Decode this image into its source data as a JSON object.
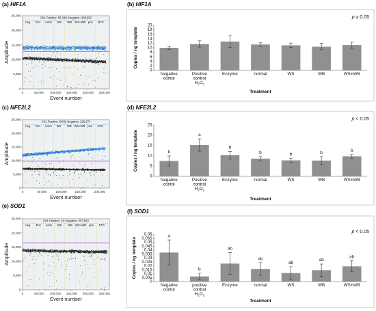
{
  "chart_data": [
    {
      "type": "scatter",
      "panel_label": "(a) HIF1A",
      "header": "Ch1 Positive: 56,348; Negative: 209,652",
      "xlabel": "Event number",
      "ylabel": "Amplitude",
      "x_ticks": [
        "0",
        "50,000",
        "100,000",
        "150,000",
        "200,000",
        "250,000"
      ],
      "y_ticks": [
        "0",
        "5,000",
        "10,000",
        "15,000",
        "20,000",
        "25,000"
      ],
      "xlim": [
        0,
        265000
      ],
      "ylim": [
        0,
        25000
      ],
      "threshold": 12800,
      "groups": [
        "neg",
        "Enz",
        "norm",
        "WS",
        "WB",
        "WS+WB",
        "pos",
        "NTC"
      ],
      "clusters": [
        {
          "name": "positive",
          "color": "#1f78d6",
          "x": [
            0,
            255000
          ],
          "y": [
            14000,
            14000
          ],
          "spread": 1400
        },
        {
          "name": "negative",
          "color": "#222222",
          "x": [
            0,
            255000
          ],
          "y": [
            10500,
            9200
          ],
          "spread": 1000
        }
      ]
    },
    {
      "type": "bar",
      "panel_label": "(b) HIF1A",
      "categories": [
        "Negative\ncontol",
        "Positive\ncontrol\nH2O2",
        "Enzyme",
        "normal",
        "WS",
        "WB",
        "WS+WB"
      ],
      "values": [
        10.0,
        11.7,
        12.8,
        11.5,
        11.1,
        10.5,
        11.2
      ],
      "errors": [
        0.8,
        1.4,
        2.6,
        0.8,
        1.0,
        1.4,
        1.3
      ],
      "letters": [],
      "y_ticks": [
        "0",
        "2",
        "4",
        "6",
        "8",
        "10",
        "12",
        "14",
        "16",
        "18",
        "20"
      ],
      "ylim": [
        0,
        20
      ],
      "ylabel": "Copies / ng template",
      "xlabel": "Treatment",
      "annotation": "p ≥ 0.05",
      "bar_color": "#909090"
    },
    {
      "type": "scatter",
      "panel_label": "(c) NFE2L2",
      "header": "Ch1 Positive: 5409; Negative: 226,274",
      "xlabel": "Event number",
      "ylabel": "Amplitude",
      "x_ticks": [
        "0",
        "50,000",
        "100,000",
        "150,000",
        "200,000"
      ],
      "y_ticks": [
        "0",
        "5,000",
        "10,000",
        "15,000",
        "20,000",
        "25,000"
      ],
      "xlim": [
        0,
        225000
      ],
      "ylim": [
        0,
        25000
      ],
      "threshold": 9800,
      "groups": [
        "neg",
        "Enz",
        "norm",
        "WS",
        "WB",
        "WS+WB",
        "pos",
        "NTC"
      ],
      "clusters": [
        {
          "name": "positive",
          "color": "#1f78d6",
          "x": [
            0,
            215000
          ],
          "y": [
            12000,
            14500
          ],
          "spread": 1000
        },
        {
          "name": "negative",
          "color": "#222222",
          "x": [
            0,
            215000
          ],
          "y": [
            7000,
            6600
          ],
          "spread": 700
        }
      ]
    },
    {
      "type": "bar",
      "panel_label": "(d) NFE2L2",
      "categories": [
        "Negative\ncontol",
        "Positive\ncontrol\nH2O2",
        "Enzyme",
        "normal",
        "WS",
        "WB",
        "WS+WB"
      ],
      "values": [
        7.5,
        15.3,
        10.3,
        8.6,
        7.8,
        7.7,
        9.8
      ],
      "errors": [
        2.5,
        3.0,
        1.9,
        1.1,
        1.1,
        1.9,
        0.9
      ],
      "letters": [
        "b",
        "a",
        "b",
        "b",
        "b",
        "b",
        "b"
      ],
      "y_ticks": [
        "0",
        "5",
        "10",
        "15",
        "20",
        "25"
      ],
      "ylim": [
        0,
        25
      ],
      "ylabel": "Copies / ng template",
      "xlabel": "Treatment",
      "annotation": "p < 0.05",
      "bar_color": "#909090"
    },
    {
      "type": "scatter",
      "panel_label": "(e) SOD1",
      "header": "Ch1 Positive: 14; Negative: 257,862",
      "xlabel": "Event number",
      "ylabel": "Amplitude",
      "x_ticks": [
        "0",
        "50,000",
        "100,000",
        "150,000",
        "200,000",
        "250,000"
      ],
      "y_ticks": [
        "0",
        "5,000",
        "10,000",
        "15,000",
        "20,000",
        "25,000"
      ],
      "xlim": [
        0,
        265000
      ],
      "ylim": [
        0,
        25000
      ],
      "threshold": 16500,
      "groups": [
        "neg",
        "Enz",
        "norm",
        "WS",
        "WB",
        "WS+WB",
        "pos",
        "NTC"
      ],
      "clusters": [
        {
          "name": "negative",
          "color": "#222222",
          "x": [
            0,
            258000
          ],
          "y": [
            13800,
            13300
          ],
          "spread": 1100
        }
      ]
    },
    {
      "type": "bar",
      "panel_label": "(f) SOD1",
      "categories": [
        "Negative\ncontol",
        "positive\ncontrol\nH2O2",
        "Enzyme",
        "normal",
        "WS",
        "WB",
        "WS+WB"
      ],
      "values": [
        0.037,
        0.0065,
        0.023,
        0.016,
        0.011,
        0.0145,
        0.0195
      ],
      "errors": [
        0.016,
        0.0045,
        0.014,
        0.008,
        0.008,
        0.008,
        0.007
      ],
      "letters": [
        "a",
        "b",
        "ab",
        "ab",
        "ab",
        "ab",
        "ab"
      ],
      "y_ticks": [
        "0",
        "0.005",
        "0.01",
        "0.015",
        "0.02",
        "0.025",
        "0.03",
        "0.035",
        "0.04",
        "0.045",
        "0.05",
        "0.055",
        "0.06"
      ],
      "ylim": [
        0,
        0.06
      ],
      "ylabel": "Copies / ng template",
      "xlabel": "Treatment",
      "annotation": "p < 0.05",
      "bar_color": "#909090"
    }
  ]
}
